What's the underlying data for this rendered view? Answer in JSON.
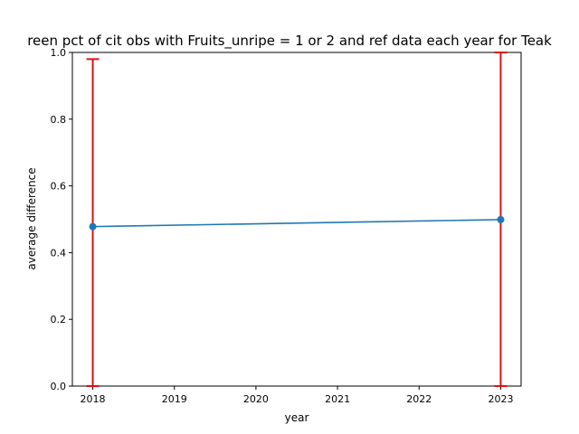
{
  "chart_data": {
    "type": "line",
    "title": "reen pct of cit obs with Fruits_unripe = 1 or 2 and ref data each year for Teak",
    "xlabel": "year",
    "ylabel": "average difference",
    "xlim": [
      2017.75,
      2023.25
    ],
    "ylim": [
      0.0,
      1.0
    ],
    "x_ticks": [
      "2018",
      "2019",
      "2020",
      "2021",
      "2022",
      "2023"
    ],
    "y_ticks": [
      "0.0",
      "0.2",
      "0.4",
      "0.6",
      "0.8",
      "1.0"
    ],
    "grid": false,
    "series": [
      {
        "x": [
          2018,
          2023
        ],
        "y": [
          0.478,
          0.499
        ],
        "error_low": [
          0.0,
          0.0
        ],
        "error_high": [
          0.98,
          1.0
        ]
      }
    ],
    "colors": {
      "line": "#1f77b4",
      "error_bar": "#dd1111"
    }
  }
}
